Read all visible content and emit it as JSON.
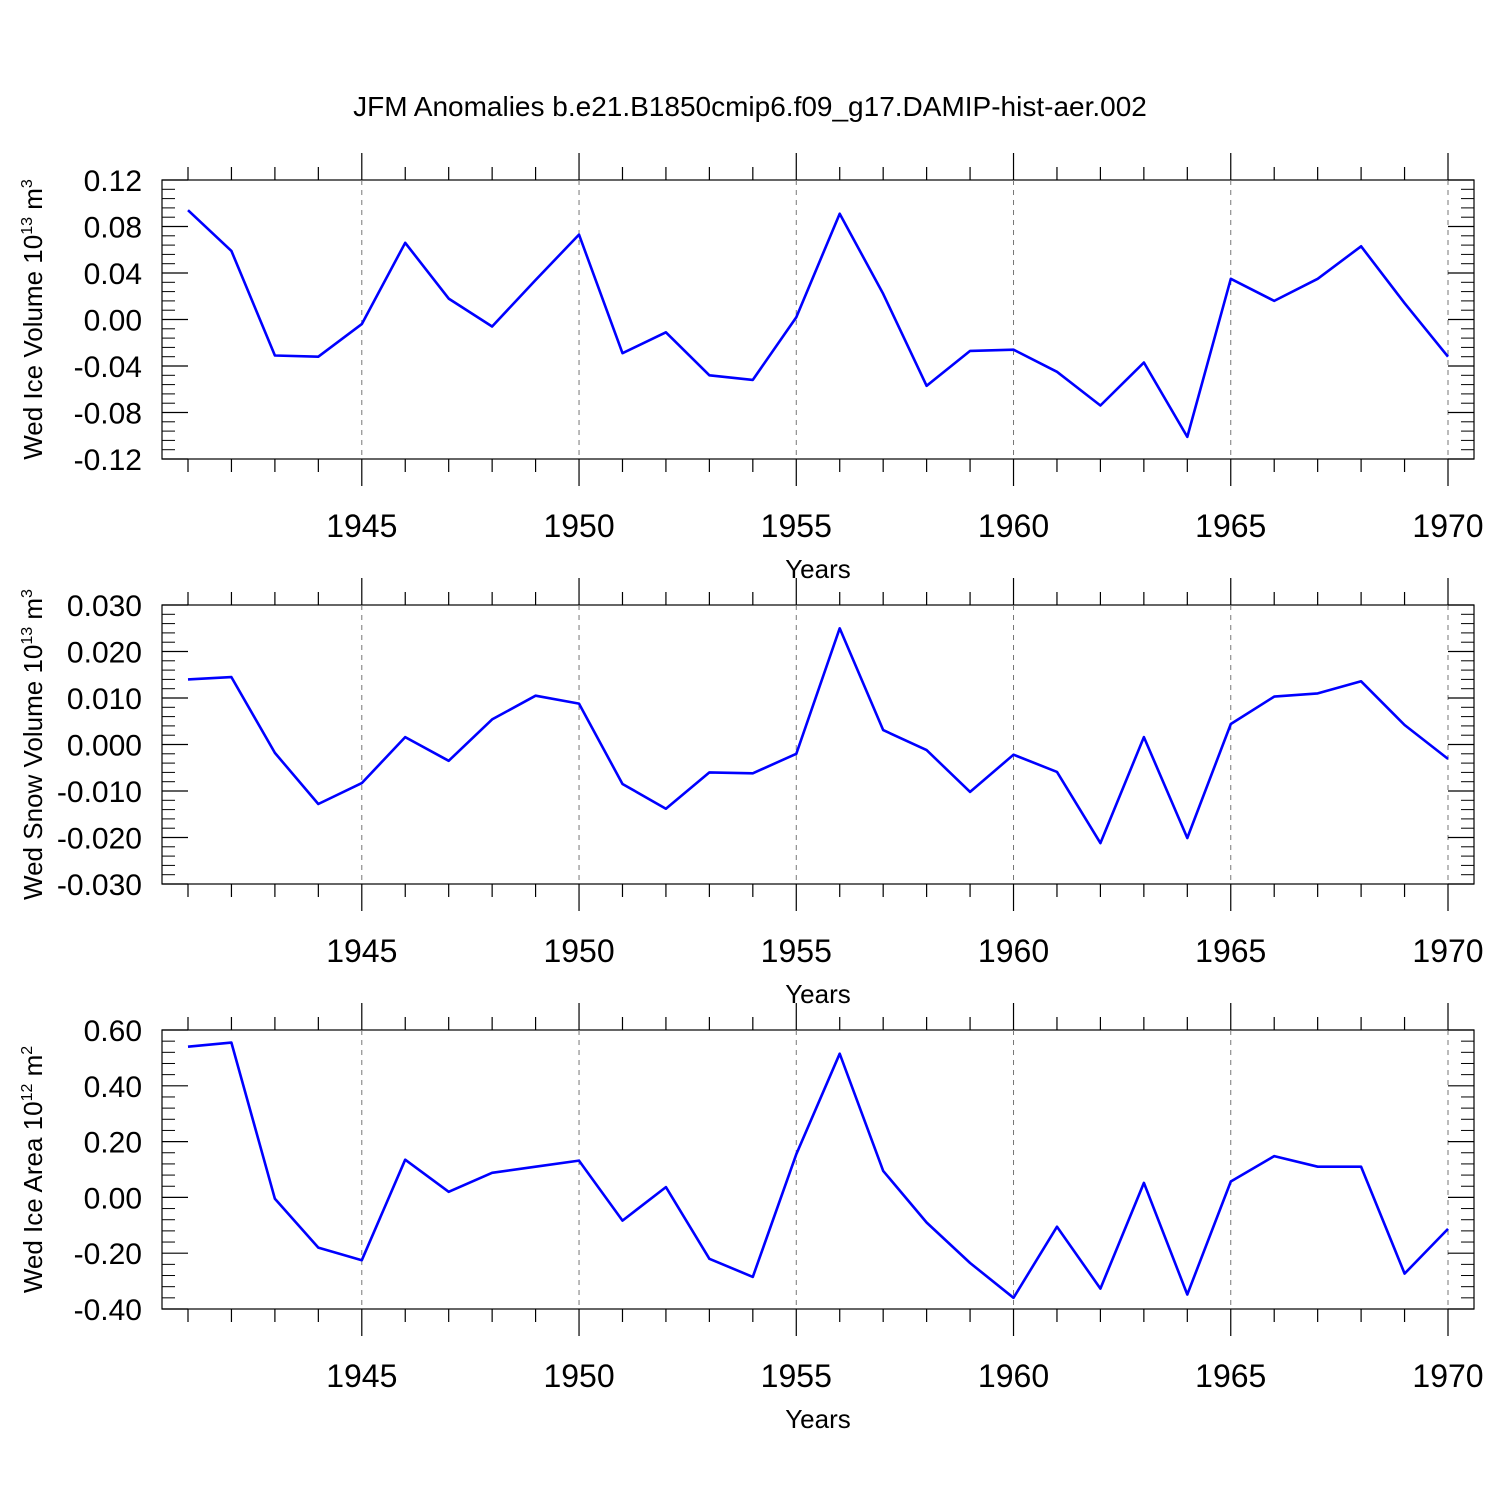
{
  "figure_title": "JFM Anomalies b.e21.B1850cmip6.f09_g17.DAMIP-hist-aer.002",
  "line_color": "#0000ff",
  "chart_data": [
    {
      "type": "line",
      "ylabel": "Wed Ice Volume 10",
      "ylabel_sup": "13",
      "ylabel_unit": " m",
      "ylabel_unit_sup": "3",
      "xlabel": "Years",
      "xlim": [
        1941,
        1970
      ],
      "ylim": [
        -0.12,
        0.12
      ],
      "yticks": [
        -0.12,
        -0.08,
        -0.04,
        0.0,
        0.04,
        0.08,
        0.12
      ],
      "ytick_labels": [
        "-0.12",
        "-0.08",
        "-0.04",
        "0.00",
        "0.04",
        "0.08",
        "0.12"
      ],
      "xticks": [
        1945,
        1950,
        1955,
        1960,
        1965,
        1970
      ],
      "xtick_labels": [
        "1945",
        "1950",
        "1955",
        "1960",
        "1965",
        "1970"
      ],
      "grid": "vertical dashed at major x ticks",
      "x": [
        1941,
        1942,
        1943,
        1944,
        1945,
        1946,
        1947,
        1948,
        1949,
        1950,
        1951,
        1952,
        1953,
        1954,
        1955,
        1956,
        1957,
        1958,
        1959,
        1960,
        1961,
        1962,
        1963,
        1964,
        1965,
        1966,
        1967,
        1968,
        1969,
        1970
      ],
      "values": [
        0.094,
        0.059,
        -0.031,
        -0.032,
        -0.004,
        0.066,
        0.018,
        -0.006,
        0.034,
        0.073,
        -0.029,
        -0.011,
        -0.048,
        -0.052,
        0.002,
        0.091,
        0.022,
        -0.057,
        -0.027,
        -0.026,
        -0.045,
        -0.074,
        -0.037,
        -0.101,
        0.035,
        0.016,
        0.035,
        0.063,
        0.014,
        -0.032
      ]
    },
    {
      "type": "line",
      "ylabel": "Wed Snow Volume 10",
      "ylabel_sup": "13",
      "ylabel_unit": " m",
      "ylabel_unit_sup": "3",
      "xlabel": "Years",
      "xlim": [
        1941,
        1970
      ],
      "ylim": [
        -0.03,
        0.03
      ],
      "yticks": [
        -0.03,
        -0.02,
        -0.01,
        0.0,
        0.01,
        0.02,
        0.03
      ],
      "ytick_labels": [
        "-0.030",
        "-0.020",
        "-0.010",
        "0.000",
        "0.010",
        "0.020",
        "0.030"
      ],
      "xticks": [
        1945,
        1950,
        1955,
        1960,
        1965,
        1970
      ],
      "xtick_labels": [
        "1945",
        "1950",
        "1955",
        "1960",
        "1965",
        "1970"
      ],
      "grid": "vertical dashed at major x ticks",
      "x": [
        1941,
        1942,
        1943,
        1944,
        1945,
        1946,
        1947,
        1948,
        1949,
        1950,
        1951,
        1952,
        1953,
        1954,
        1955,
        1956,
        1957,
        1958,
        1959,
        1960,
        1961,
        1962,
        1963,
        1964,
        1965,
        1966,
        1967,
        1968,
        1969,
        1970
      ],
      "values": [
        0.014,
        0.0145,
        -0.0018,
        -0.0128,
        -0.0083,
        0.0016,
        -0.0035,
        0.0054,
        0.0105,
        0.0088,
        -0.0085,
        -0.0138,
        -0.006,
        -0.0062,
        -0.002,
        0.025,
        0.0031,
        -0.0012,
        -0.0102,
        -0.0022,
        -0.0059,
        -0.0212,
        0.0016,
        -0.0201,
        0.0044,
        0.0103,
        0.011,
        0.0136,
        0.0042,
        -0.0031
      ]
    },
    {
      "type": "line",
      "ylabel": "Wed Ice Area 10",
      "ylabel_sup": "12",
      "ylabel_unit": " m",
      "ylabel_unit_sup": "2",
      "xlabel": "Years",
      "xlim": [
        1941,
        1970
      ],
      "ylim": [
        -0.4,
        0.6
      ],
      "yticks": [
        -0.4,
        -0.2,
        0.0,
        0.2,
        0.4,
        0.6
      ],
      "ytick_labels": [
        "-0.40",
        "-0.20",
        "0.00",
        "0.20",
        "0.40",
        "0.60"
      ],
      "xticks": [
        1945,
        1950,
        1955,
        1960,
        1965,
        1970
      ],
      "xtick_labels": [
        "1945",
        "1950",
        "1955",
        "1960",
        "1965",
        "1970"
      ],
      "grid": "vertical dashed at major x ticks",
      "x": [
        1941,
        1942,
        1943,
        1944,
        1945,
        1946,
        1947,
        1948,
        1949,
        1950,
        1951,
        1952,
        1953,
        1954,
        1955,
        1956,
        1957,
        1958,
        1959,
        1960,
        1961,
        1962,
        1963,
        1964,
        1965,
        1966,
        1967,
        1968,
        1969,
        1970
      ],
      "values": [
        0.54,
        0.555,
        -0.005,
        -0.18,
        -0.225,
        0.135,
        0.02,
        0.088,
        0.11,
        0.132,
        -0.083,
        0.037,
        -0.22,
        -0.285,
        0.155,
        0.515,
        0.095,
        -0.09,
        -0.235,
        -0.36,
        -0.105,
        -0.327,
        0.052,
        -0.348,
        0.057,
        0.148,
        0.11,
        0.11,
        -0.273,
        -0.113
      ]
    }
  ]
}
